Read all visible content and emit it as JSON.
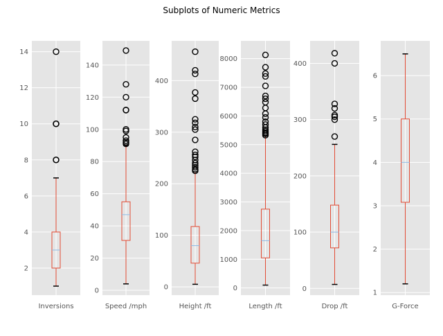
{
  "figure": {
    "title": "Subplots of Numeric Metrics"
  },
  "style": {
    "panel_bg": "#E5E5E5",
    "grid": "#FFFFFF",
    "box": "#E24A33",
    "median": "#8EBAE5",
    "cap": "#000000",
    "flier_edge": "#000000"
  },
  "chart_data": [
    {
      "type": "boxplot",
      "xlabel": "Inversions",
      "ylim": [
        0.5,
        14.6
      ],
      "yticks": [
        2,
        4,
        6,
        8,
        10,
        12,
        14
      ],
      "ytick_labels": [
        "2",
        "4",
        "6",
        "8",
        "10",
        "12",
        "14"
      ],
      "stats": {
        "whislo": 1,
        "q1": 2,
        "med": 3,
        "q3": 4,
        "whishi": 7
      },
      "fliers": [
        8,
        8,
        10,
        10,
        10,
        14
      ]
    },
    {
      "type": "boxplot",
      "xlabel": "Speed /mph",
      "ylim": [
        -3,
        155
      ],
      "yticks": [
        0,
        20,
        40,
        60,
        80,
        100,
        120,
        140
      ],
      "ytick_labels": [
        "0",
        "20",
        "40",
        "60",
        "80",
        "100",
        "120",
        "140"
      ],
      "stats": {
        "whislo": 4,
        "q1": 31,
        "med": 47,
        "q3": 55,
        "whishi": 90
      },
      "fliers": [
        91,
        92,
        93,
        95,
        99,
        100,
        112,
        112,
        120,
        128,
        149
      ]
    },
    {
      "type": "boxplot",
      "xlabel": "Height /ft",
      "ylim": [
        -16,
        477
      ],
      "yticks": [
        0,
        100,
        200,
        300,
        400
      ],
      "ytick_labels": [
        "0",
        "100",
        "200",
        "300",
        "400"
      ],
      "stats": {
        "whislo": 5,
        "q1": 46,
        "med": 80,
        "q3": 117,
        "whishi": 223
      },
      "fliers": [
        225,
        228,
        232,
        236,
        240,
        246,
        252,
        256,
        262,
        285,
        305,
        310,
        318,
        325,
        365,
        377,
        413,
        420,
        456
      ]
    },
    {
      "type": "boxplot",
      "xlabel": "Length /ft",
      "ylim": [
        -250,
        8620
      ],
      "yticks": [
        0,
        1000,
        2000,
        3000,
        4000,
        5000,
        6000,
        7000,
        8000
      ],
      "ytick_labels": [
        "0",
        "1000",
        "2000",
        "3000",
        "4000",
        "5000",
        "6000",
        "7000",
        "8000"
      ],
      "stats": {
        "whislo": 100,
        "q1": 1050,
        "med": 1650,
        "q3": 2750,
        "whishi": 5300
      },
      "fliers": [
        5330,
        5380,
        5420,
        5470,
        5520,
        5600,
        5700,
        5800,
        5950,
        6080,
        6280,
        6480,
        6600,
        6700,
        7050,
        7380,
        7480,
        7700,
        8130
      ]
    },
    {
      "type": "boxplot",
      "xlabel": "Drop /ft",
      "ylim": [
        -12,
        440
      ],
      "yticks": [
        0,
        100,
        200,
        300,
        400
      ],
      "ytick_labels": [
        "0",
        "100",
        "200",
        "300",
        "400"
      ],
      "stats": {
        "whislo": 7,
        "q1": 72,
        "med": 100,
        "q3": 148,
        "whishi": 256
      },
      "fliers": [
        270,
        300,
        305,
        308,
        320,
        328,
        400,
        418
      ]
    },
    {
      "type": "boxplot",
      "xlabel": "G-Force",
      "ylim": [
        0.94,
        6.8
      ],
      "yticks": [
        1,
        2,
        3,
        4,
        5,
        6
      ],
      "ytick_labels": [
        "1",
        "2",
        "3",
        "4",
        "5",
        "6"
      ],
      "stats": {
        "whislo": 1.2,
        "q1": 3.08,
        "med": 4.0,
        "q3": 5.0,
        "whishi": 6.5
      },
      "fliers": []
    }
  ]
}
